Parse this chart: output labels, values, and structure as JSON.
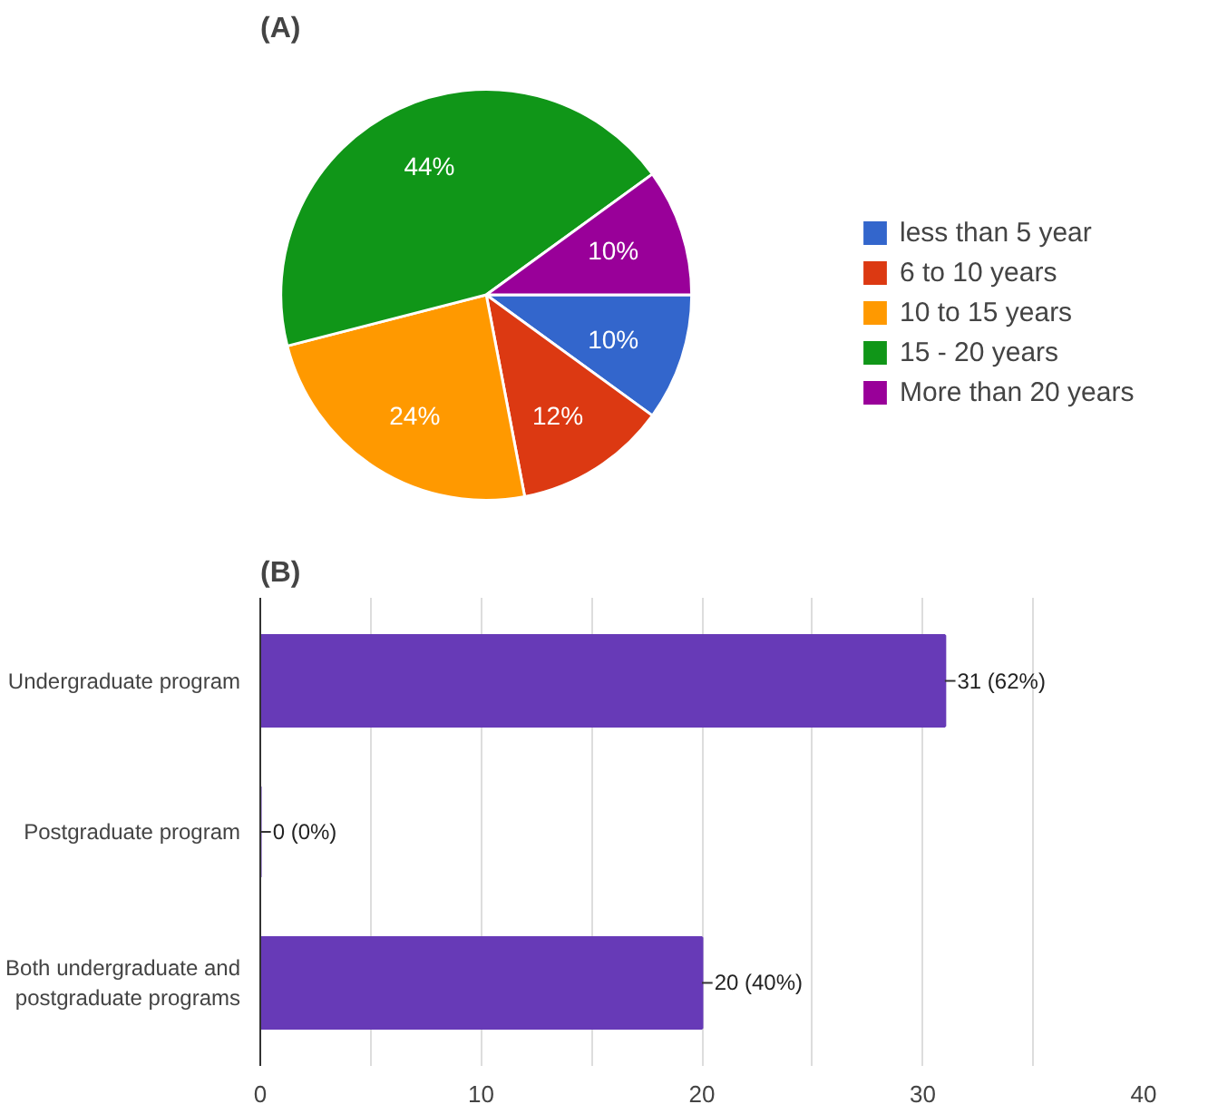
{
  "chart_data": [
    {
      "type": "pie",
      "title": "(A)",
      "categories": [
        "less than 5 year",
        "6 to 10 years",
        "10 to 15 years",
        "15 - 20 years",
        "More than 20 years"
      ],
      "values": [
        10,
        12,
        24,
        44,
        10
      ],
      "colors": [
        "#3366cc",
        "#dc3912",
        "#ff9900",
        "#109618",
        "#990099"
      ],
      "value_labels": [
        "10%",
        "12%",
        "24%",
        "44%",
        "10%"
      ],
      "legend": "right"
    },
    {
      "type": "bar",
      "orientation": "horizontal",
      "title": "(B)",
      "categories": [
        "Undergraduate program",
        "Postgraduate program",
        "Both undergraduate and postgraduate programs"
      ],
      "values": [
        31,
        0,
        20
      ],
      "value_labels": [
        "31 (62%)",
        "0 (0%)",
        "20 (40%)"
      ],
      "color": "#673ab7",
      "xlim": [
        0,
        40
      ],
      "xticks": [
        0,
        {
          "value": 5,
          "label": null
        },
        10,
        {
          "value": 15,
          "label": null
        },
        20,
        {
          "value": 25,
          "label": null
        },
        30,
        {
          "value": 35,
          "label": null
        },
        40
      ],
      "grid": "x"
    }
  ]
}
